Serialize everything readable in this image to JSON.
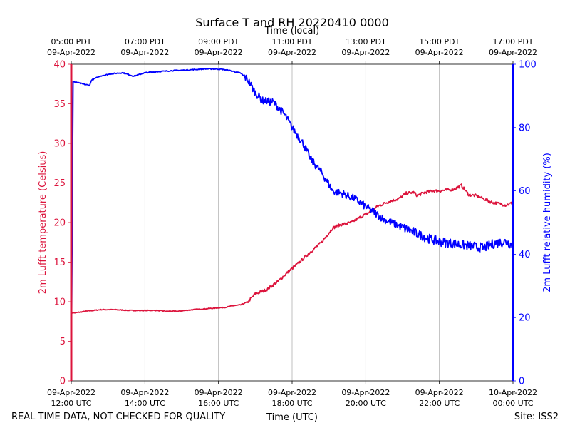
{
  "chart_data": {
    "type": "line",
    "title": "Surface T and RH 20220410 0000",
    "top_axis_label": "Time (local)",
    "xlabel": "Time (UTC)",
    "ylabel_left": "2m Lufft temperature (Celsius)",
    "ylabel_right": "2m Lufft relative humidity (%)",
    "footer_left": "REAL TIME DATA, NOT CHECKED FOR QUALITY",
    "footer_right": "Site: ISS2",
    "x_range_hours_utc": [
      12,
      24
    ],
    "ylim_left": [
      0,
      40
    ],
    "ylim_right": [
      0,
      100
    ],
    "grid": "vertical",
    "colors": {
      "temperature": "#dc143c",
      "humidity": "#0000ff",
      "grid": "#b0b0b0"
    },
    "bottom_ticks": [
      {
        "hour": 12,
        "date": "09-Apr-2022",
        "time": "12:00 UTC"
      },
      {
        "hour": 14,
        "date": "09-Apr-2022",
        "time": "14:00 UTC"
      },
      {
        "hour": 16,
        "date": "09-Apr-2022",
        "time": "16:00 UTC"
      },
      {
        "hour": 18,
        "date": "09-Apr-2022",
        "time": "18:00 UTC"
      },
      {
        "hour": 20,
        "date": "09-Apr-2022",
        "time": "20:00 UTC"
      },
      {
        "hour": 22,
        "date": "09-Apr-2022",
        "time": "22:00 UTC"
      },
      {
        "hour": 24,
        "date": "10-Apr-2022",
        "time": "00:00 UTC"
      }
    ],
    "top_ticks": [
      {
        "hour": 12,
        "time": "05:00 PDT",
        "date": "09-Apr-2022"
      },
      {
        "hour": 14,
        "time": "07:00 PDT",
        "date": "09-Apr-2022"
      },
      {
        "hour": 16,
        "time": "09:00 PDT",
        "date": "09-Apr-2022"
      },
      {
        "hour": 18,
        "time": "11:00 PDT",
        "date": "09-Apr-2022"
      },
      {
        "hour": 20,
        "time": "13:00 PDT",
        "date": "09-Apr-2022"
      },
      {
        "hour": 22,
        "time": "15:00 PDT",
        "date": "09-Apr-2022"
      },
      {
        "hour": 24,
        "time": "17:00 PDT",
        "date": "09-Apr-2022"
      }
    ],
    "left_ticks": [
      "0",
      "5",
      "10",
      "15",
      "20",
      "25",
      "30",
      "35",
      "40"
    ],
    "right_ticks": [
      "0",
      "20",
      "40",
      "60",
      "80",
      "100"
    ],
    "series": [
      {
        "name": "2m Lufft temperature (Celsius)",
        "axis": "left",
        "color": "#dc143c",
        "x": [
          12.0,
          12.1,
          12.4,
          12.8,
          13.2,
          13.6,
          14.0,
          14.3,
          14.6,
          14.9,
          15.1,
          15.3,
          15.6,
          15.9,
          16.2,
          16.4,
          16.6,
          16.8,
          17.0,
          17.3,
          17.6,
          17.9,
          18.2,
          18.5,
          18.8,
          19.1,
          19.3,
          19.6,
          19.9,
          20.1,
          20.3,
          20.6,
          20.9,
          21.1,
          21.3,
          21.4,
          21.6,
          21.8,
          22.0,
          22.2,
          22.4,
          22.6,
          22.8,
          23.0,
          23.2,
          23.4,
          23.6,
          23.8,
          24.0
        ],
        "y": [
          8.6,
          8.6,
          8.8,
          9.0,
          9.0,
          8.9,
          8.9,
          8.9,
          8.8,
          8.8,
          8.9,
          9.0,
          9.1,
          9.2,
          9.3,
          9.5,
          9.6,
          10.0,
          11.0,
          11.5,
          12.5,
          13.8,
          15.0,
          16.3,
          17.5,
          19.3,
          19.7,
          20.0,
          20.8,
          21.3,
          22.0,
          22.6,
          23.0,
          23.7,
          23.8,
          23.4,
          23.8,
          24.0,
          24.0,
          24.1,
          24.2,
          24.7,
          23.5,
          23.4,
          23.0,
          22.6,
          22.4,
          22.2,
          22.5
        ]
      },
      {
        "name": "2m Lufft relative humidity (%)",
        "axis": "right",
        "color": "#0000ff",
        "x": [
          12.0,
          12.05,
          12.3,
          12.5,
          12.55,
          12.8,
          13.1,
          13.4,
          13.7,
          14.0,
          14.4,
          14.8,
          15.2,
          15.6,
          15.9,
          16.1,
          16.3,
          16.6,
          16.8,
          17.0,
          17.2,
          17.5,
          17.8,
          18.0,
          18.3,
          18.5,
          18.8,
          19.1,
          19.4,
          19.7,
          20.0,
          20.2,
          20.5,
          20.8,
          21.1,
          21.4,
          21.7,
          22.0,
          22.3,
          22.6,
          22.9,
          23.2,
          23.5,
          23.8,
          24.0
        ],
        "y": [
          0,
          94.5,
          93.8,
          93.3,
          95.0,
          96.3,
          97.0,
          97.3,
          96.2,
          97.3,
          97.7,
          98.0,
          98.2,
          98.5,
          98.5,
          98.4,
          98.0,
          97.2,
          95.0,
          91.0,
          88.5,
          88.0,
          84.0,
          80.0,
          75.0,
          70.0,
          65.8,
          60.0,
          59.0,
          57.5,
          55.0,
          53.5,
          51.0,
          49.5,
          48.0,
          46.5,
          45.0,
          44.0,
          43.5,
          43.0,
          42.5,
          42.0,
          43.5,
          44.0,
          43.0
        ]
      }
    ]
  }
}
